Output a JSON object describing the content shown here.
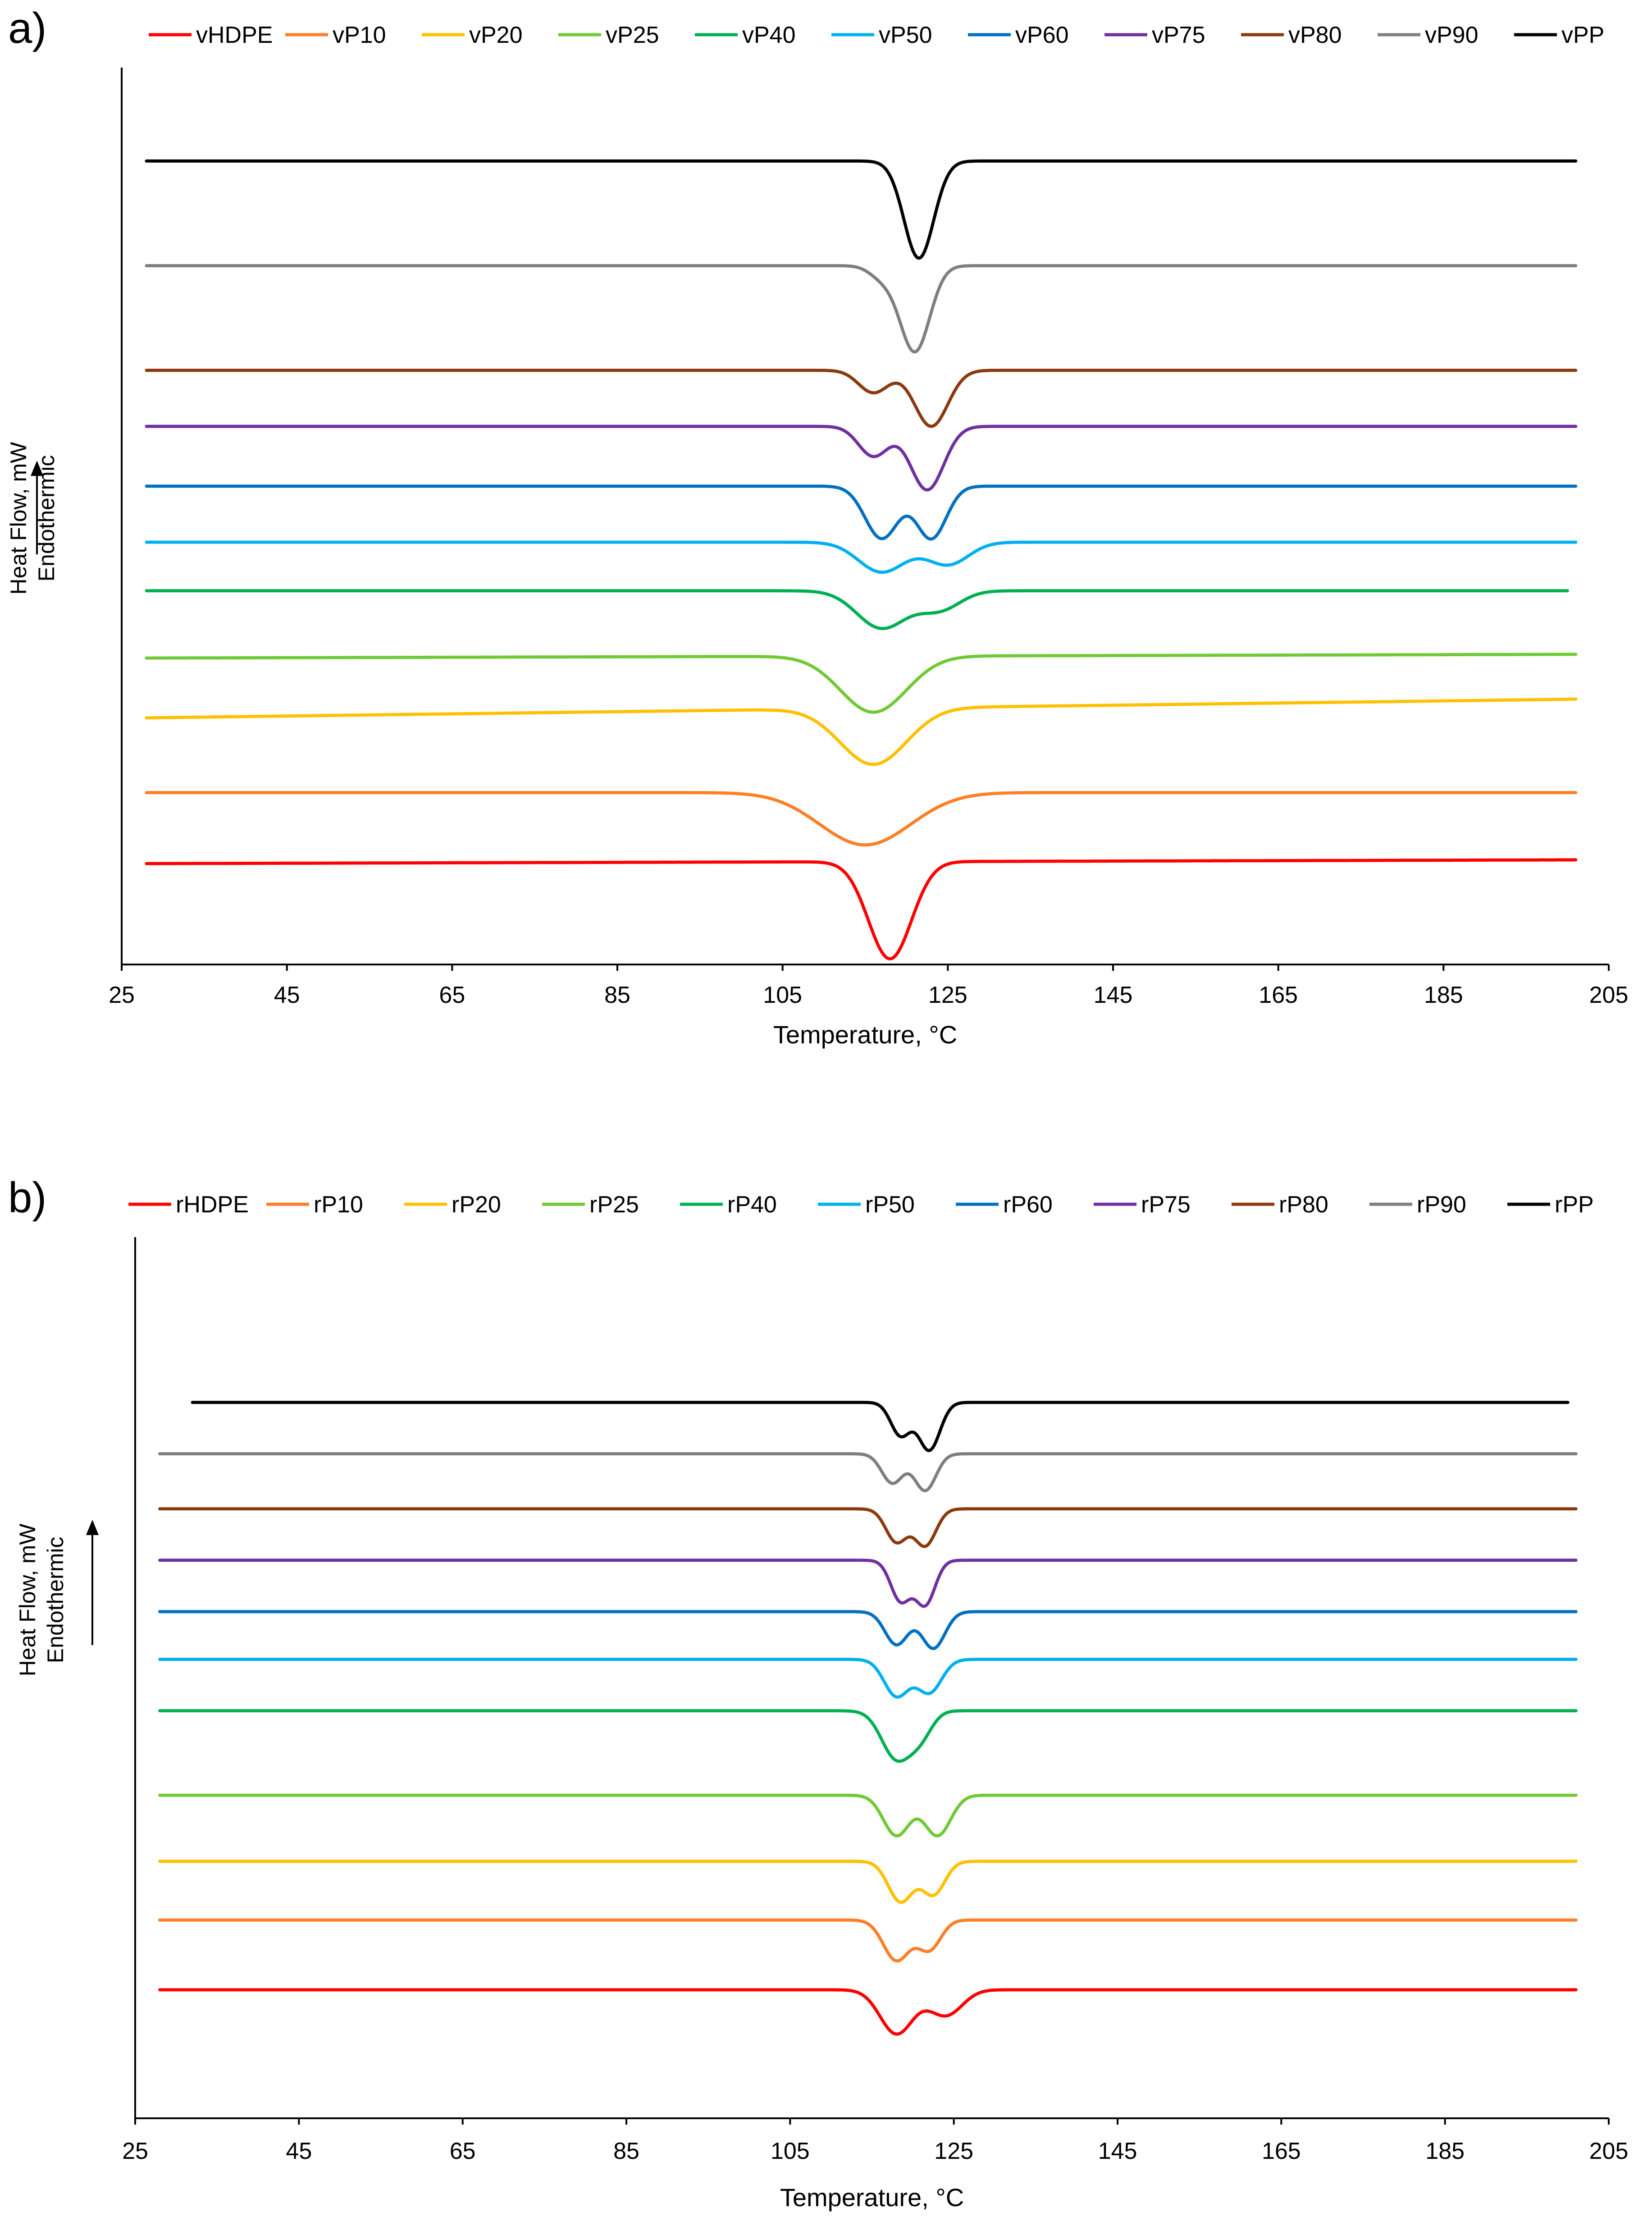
{
  "chart_data": [
    {
      "type": "line",
      "panel_label": "a)",
      "title": "",
      "xlabel": "Temperature, °C",
      "ylabel_lines": [
        "Heat Flow, mW",
        "Endothermic"
      ],
      "xlim": [
        25,
        205
      ],
      "xticks": [
        25,
        45,
        65,
        85,
        105,
        125,
        145,
        165,
        185,
        205
      ],
      "y_ticks_shown": false,
      "grid": false,
      "legend_position": "top",
      "series": [
        {
          "name": "vHDPE",
          "color": "#ff0000",
          "baseline": 1.0,
          "x_start": 28,
          "x_end": 201,
          "left_level": 1.35,
          "right_level": 1.4,
          "peaks": [
            {
              "t": 118,
              "depth": 1.3,
              "w": 2.6
            }
          ]
        },
        {
          "name": "vP10",
          "color": "#ff7f27",
          "baseline": 2.0,
          "x_start": 28,
          "x_end": 201,
          "left_level": 2.3,
          "right_level": 2.3,
          "peaks": [
            {
              "t": 115,
              "depth": 0.7,
              "w": 5.5
            }
          ]
        },
        {
          "name": "vP20",
          "color": "#ffc000",
          "baseline": 3.0,
          "x_start": 28,
          "x_end": 201,
          "left_level": 3.3,
          "right_level": 3.55,
          "peaks": [
            {
              "t": 116,
              "depth": 0.75,
              "w": 4.0
            }
          ]
        },
        {
          "name": "vP25",
          "color": "#70c936",
          "baseline": 4.0,
          "x_start": 28,
          "x_end": 201,
          "left_level": 4.1,
          "right_level": 4.15,
          "peaks": [
            {
              "t": 116,
              "depth": 0.75,
              "w": 4.0
            }
          ]
        },
        {
          "name": "vP40",
          "color": "#00b050",
          "baseline": 5.0,
          "x_start": 28,
          "x_end": 200,
          "left_level": 5.0,
          "right_level": 5.0,
          "peaks": [
            {
              "t": 117,
              "depth": 0.5,
              "w": 3.0
            },
            {
              "t": 124,
              "depth": 0.25,
              "w": 2.5
            }
          ]
        },
        {
          "name": "vP50",
          "color": "#00b0f0",
          "baseline": 6.0,
          "x_start": 28,
          "x_end": 201,
          "left_level": 5.65,
          "right_level": 5.65,
          "peaks": [
            {
              "t": 117,
              "depth": 0.4,
              "w": 2.8
            },
            {
              "t": 125,
              "depth": 0.3,
              "w": 2.5
            }
          ]
        },
        {
          "name": "vP60",
          "color": "#0070c0",
          "baseline": 7.0,
          "x_start": 28,
          "x_end": 201,
          "left_level": 6.4,
          "right_level": 6.4,
          "peaks": [
            {
              "t": 117,
              "depth": 0.7,
              "w": 2.0
            },
            {
              "t": 123,
              "depth": 0.7,
              "w": 1.8
            }
          ]
        },
        {
          "name": "vP75",
          "color": "#7030a0",
          "baseline": 8.0,
          "x_start": 28,
          "x_end": 201,
          "left_level": 7.2,
          "right_level": 7.2,
          "peaks": [
            {
              "t": 116,
              "depth": 0.4,
              "w": 1.8
            },
            {
              "t": 122.5,
              "depth": 0.85,
              "w": 2.0
            }
          ]
        },
        {
          "name": "vP80",
          "color": "#8b3a0f",
          "baseline": 9.0,
          "x_start": 28,
          "x_end": 201,
          "left_level": 7.95,
          "right_level": 7.95,
          "peaks": [
            {
              "t": 116,
              "depth": 0.3,
              "w": 1.8
            },
            {
              "t": 123,
              "depth": 0.75,
              "w": 2.0
            }
          ]
        },
        {
          "name": "vP90",
          "color": "#7f7f7f",
          "baseline": 10.0,
          "x_start": 28,
          "x_end": 201,
          "left_level": 9.35,
          "right_level": 9.35,
          "peaks": [
            {
              "t": 117,
              "depth": 0.15,
              "w": 1.5
            },
            {
              "t": 121,
              "depth": 1.15,
              "w": 1.8
            }
          ]
        },
        {
          "name": "vPP",
          "color": "#000000",
          "baseline": 11.0,
          "x_start": 28,
          "x_end": 201,
          "left_level": 10.75,
          "right_level": 10.75,
          "peaks": [
            {
              "t": 121.5,
              "depth": 1.3,
              "w": 1.8
            }
          ]
        }
      ]
    },
    {
      "type": "line",
      "panel_label": "b)",
      "title": "",
      "xlabel": "Temperature, °C",
      "ylabel_lines": [
        "Heat Flow, mW",
        "Endothermic"
      ],
      "xlim": [
        25,
        205
      ],
      "xticks": [
        25,
        45,
        65,
        85,
        105,
        125,
        145,
        165,
        185,
        205
      ],
      "y_ticks_shown": false,
      "grid": false,
      "legend_position": "top",
      "series": [
        {
          "name": "rHDPE",
          "color": "#ff0000",
          "baseline": 1.0,
          "x_start": 28,
          "x_end": 201,
          "left_level": 1.75,
          "right_level": 1.75,
          "peaks": [
            {
              "t": 118,
              "depth": 0.6,
              "w": 2.0
            },
            {
              "t": 124,
              "depth": 0.35,
              "w": 2.0
            }
          ]
        },
        {
          "name": "rP10",
          "color": "#ff7f27",
          "baseline": 2.0,
          "x_start": 28,
          "x_end": 201,
          "left_level": 2.7,
          "right_level": 2.7,
          "peaks": [
            {
              "t": 118,
              "depth": 0.55,
              "w": 1.6
            },
            {
              "t": 122,
              "depth": 0.4,
              "w": 1.4
            }
          ]
        },
        {
          "name": "rP20",
          "color": "#ffc000",
          "baseline": 3.0,
          "x_start": 28,
          "x_end": 201,
          "left_level": 3.5,
          "right_level": 3.5,
          "peaks": [
            {
              "t": 118.5,
              "depth": 0.55,
              "w": 1.5
            },
            {
              "t": 122.5,
              "depth": 0.45,
              "w": 1.4
            }
          ]
        },
        {
          "name": "rP25",
          "color": "#70c936",
          "baseline": 4.0,
          "x_start": 28,
          "x_end": 201,
          "left_level": 4.4,
          "right_level": 4.4,
          "peaks": [
            {
              "t": 118,
              "depth": 0.55,
              "w": 1.6
            },
            {
              "t": 123,
              "depth": 0.55,
              "w": 1.6
            }
          ]
        },
        {
          "name": "rP40",
          "color": "#00b050",
          "baseline": 5.0,
          "x_start": 28,
          "x_end": 201,
          "left_level": 5.55,
          "right_level": 5.55,
          "peaks": [
            {
              "t": 118,
              "depth": 0.65,
              "w": 1.8
            },
            {
              "t": 121,
              "depth": 0.3,
              "w": 1.4
            }
          ]
        },
        {
          "name": "rP50",
          "color": "#00b0f0",
          "baseline": 6.0,
          "x_start": 28,
          "x_end": 201,
          "left_level": 6.25,
          "right_level": 6.25,
          "peaks": [
            {
              "t": 118,
              "depth": 0.5,
              "w": 1.5
            },
            {
              "t": 122,
              "depth": 0.45,
              "w": 1.5
            }
          ]
        },
        {
          "name": "rP60",
          "color": "#0070c0",
          "baseline": 7.0,
          "x_start": 28,
          "x_end": 201,
          "left_level": 6.9,
          "right_level": 6.9,
          "peaks": [
            {
              "t": 118,
              "depth": 0.45,
              "w": 1.4
            },
            {
              "t": 122.5,
              "depth": 0.5,
              "w": 1.4
            }
          ]
        },
        {
          "name": "rP75",
          "color": "#7030a0",
          "baseline": 8.0,
          "x_start": 28,
          "x_end": 201,
          "left_level": 7.6,
          "right_level": 7.6,
          "peaks": [
            {
              "t": 118.5,
              "depth": 0.55,
              "w": 1.2
            },
            {
              "t": 121.5,
              "depth": 0.6,
              "w": 1.2
            }
          ]
        },
        {
          "name": "rP80",
          "color": "#8b3a0f",
          "baseline": 9.0,
          "x_start": 28,
          "x_end": 201,
          "left_level": 8.3,
          "right_level": 8.3,
          "peaks": [
            {
              "t": 118,
              "depth": 0.45,
              "w": 1.3
            },
            {
              "t": 121.5,
              "depth": 0.5,
              "w": 1.3
            }
          ]
        },
        {
          "name": "rP90",
          "color": "#7f7f7f",
          "baseline": 10.0,
          "x_start": 28,
          "x_end": 201,
          "left_level": 9.05,
          "right_level": 9.05,
          "peaks": [
            {
              "t": 117.5,
              "depth": 0.4,
              "w": 1.3
            },
            {
              "t": 121.5,
              "depth": 0.5,
              "w": 1.3
            }
          ]
        },
        {
          "name": "rPP",
          "color": "#000000",
          "baseline": 11.0,
          "x_start": 32,
          "x_end": 200,
          "left_level": 9.75,
          "right_level": 9.75,
          "peaks": [
            {
              "t": 118.5,
              "depth": 0.45,
              "w": 1.2
            },
            {
              "t": 122,
              "depth": 0.65,
              "w": 1.3
            }
          ]
        }
      ]
    }
  ]
}
